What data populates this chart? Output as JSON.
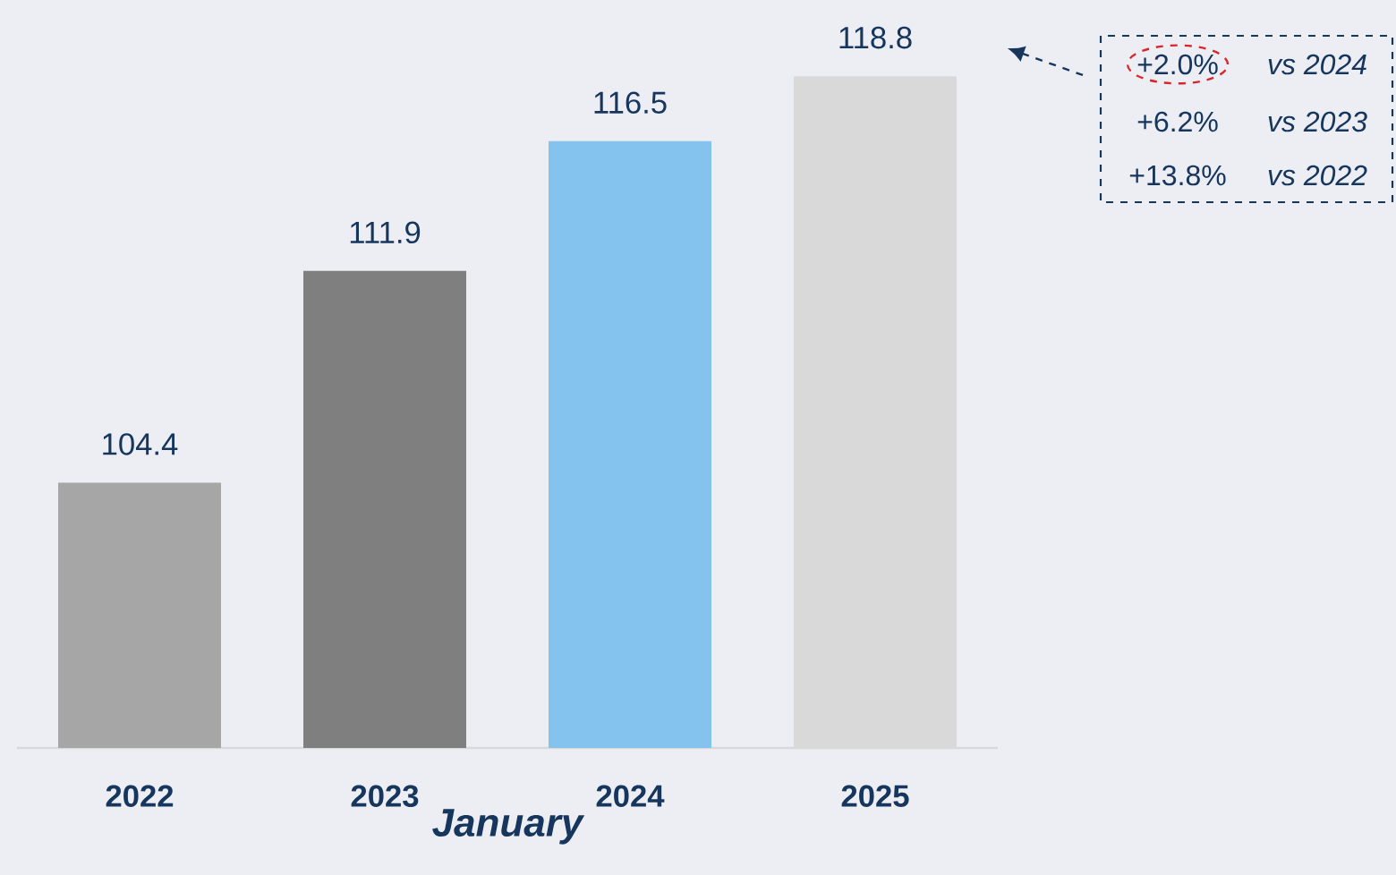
{
  "chart_data": {
    "type": "bar",
    "xlabel": "January",
    "categories": [
      "2022",
      "2023",
      "2024",
      "2025"
    ],
    "values": [
      104.4,
      111.9,
      116.5,
      118.8
    ],
    "colors": [
      "#a6a6a6",
      "#7f7f7f",
      "#85c3ef",
      "#d9d9d9"
    ],
    "ylim": [
      95,
      121.5
    ],
    "tick_labels": "x",
    "data_labels": true,
    "annotations": [
      "+2.0%",
      "vs 2024",
      "+6.2%",
      "vs 2023",
      "+13.8%",
      "vs 2022"
    ]
  }
}
